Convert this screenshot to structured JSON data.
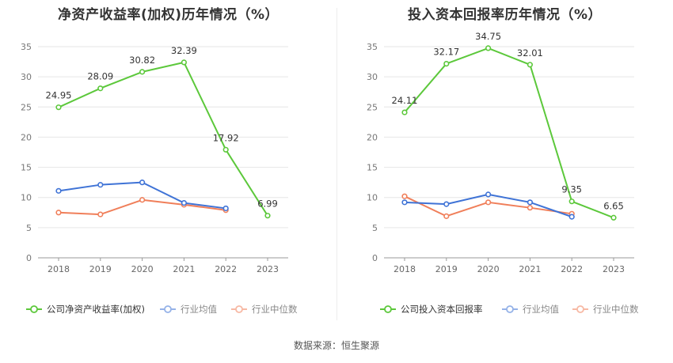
{
  "source": "数据来源：恒生聚源",
  "chart_data": [
    {
      "type": "line",
      "title": "净资产收益率(加权)历年情况（%）",
      "categories": [
        "2018",
        "2019",
        "2020",
        "2021",
        "2022",
        "2023"
      ],
      "ylim": [
        0,
        35
      ],
      "yticks": [
        0,
        5,
        10,
        15,
        20,
        25,
        30,
        35
      ],
      "grid": true,
      "legend_position": "bottom",
      "series": [
        {
          "name": "公司净资产收益率(加权)",
          "color": "#5cc83b",
          "values": [
            24.95,
            28.09,
            30.82,
            32.39,
            17.92,
            6.99
          ],
          "labels": [
            "24.95",
            "28.09",
            "30.82",
            "32.39",
            "17.92",
            "6.99"
          ]
        },
        {
          "name": "行业均值",
          "color": "#3f73d6",
          "values": [
            11.1,
            12.1,
            12.5,
            9.1,
            8.2,
            null
          ]
        },
        {
          "name": "行业中位数",
          "color": "#f07f5a",
          "values": [
            7.5,
            7.2,
            9.6,
            8.8,
            7.9,
            null
          ]
        }
      ]
    },
    {
      "type": "line",
      "title": "投入资本回报率历年情况（%）",
      "categories": [
        "2018",
        "2019",
        "2020",
        "2021",
        "2022",
        "2023"
      ],
      "ylim": [
        0,
        35
      ],
      "yticks": [
        0,
        5,
        10,
        15,
        20,
        25,
        30,
        35
      ],
      "grid": true,
      "legend_position": "bottom",
      "series": [
        {
          "name": "公司投入资本回报率",
          "color": "#5cc83b",
          "values": [
            24.11,
            32.17,
            34.75,
            32.01,
            9.35,
            6.65
          ],
          "labels": [
            "24.11",
            "32.17",
            "34.75",
            "32.01",
            "9.35",
            "6.65"
          ]
        },
        {
          "name": "行业均值",
          "color": "#3f73d6",
          "values": [
            9.2,
            8.9,
            10.5,
            9.2,
            6.8,
            null
          ]
        },
        {
          "name": "行业中位数",
          "color": "#f07f5a",
          "values": [
            10.2,
            6.9,
            9.2,
            8.3,
            7.3,
            null
          ]
        }
      ]
    }
  ]
}
